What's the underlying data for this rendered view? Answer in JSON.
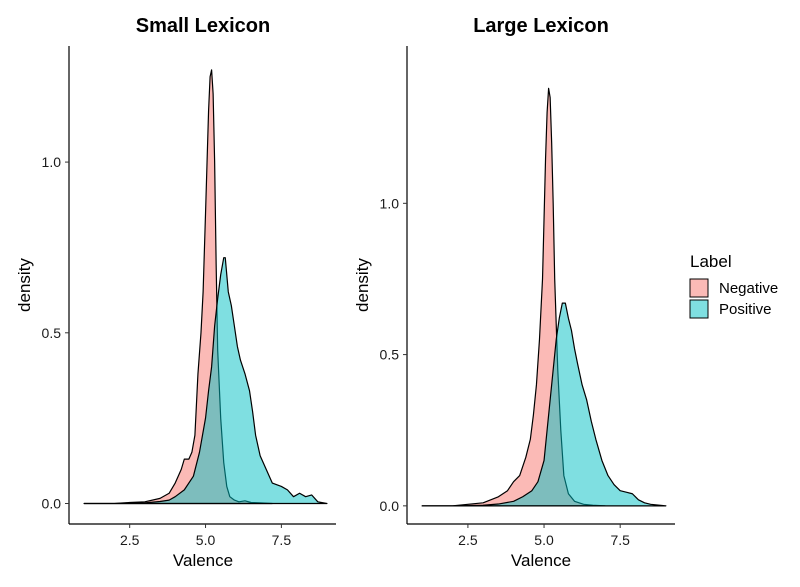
{
  "chart_data": [
    {
      "type": "area",
      "title": "Small Lexicon",
      "xlabel": "Valence",
      "ylabel": "density",
      "xlim": [
        0.5,
        9.3
      ],
      "ylim": [
        -0.06,
        1.34
      ],
      "x_ticks": [
        2.5,
        5.0,
        7.5
      ],
      "x_tick_labels": [
        "2.5",
        "5.0",
        "7.5"
      ],
      "y_ticks": [
        0.0,
        0.5,
        1.0
      ],
      "y_tick_labels": [
        "0.0",
        "0.5",
        "1.0"
      ],
      "series": [
        {
          "name": "Negative",
          "x": [
            1.0,
            2.0,
            2.5,
            3.0,
            3.5,
            3.8,
            4.0,
            4.2,
            4.3,
            4.45,
            4.55,
            4.65,
            4.75,
            4.85,
            4.92,
            5.0,
            5.05,
            5.1,
            5.15,
            5.2,
            5.25,
            5.3,
            5.35,
            5.4,
            5.5,
            5.6,
            5.7,
            5.8,
            5.95,
            6.1,
            6.3,
            6.5,
            6.8,
            7.2
          ],
          "y": [
            0.0,
            0.0,
            0.003,
            0.005,
            0.015,
            0.03,
            0.06,
            0.1,
            0.13,
            0.13,
            0.15,
            0.2,
            0.38,
            0.5,
            0.62,
            0.85,
            1.0,
            1.15,
            1.25,
            1.27,
            1.2,
            1.0,
            0.7,
            0.45,
            0.25,
            0.12,
            0.05,
            0.02,
            0.01,
            0.005,
            0.008,
            0.003,
            0.002,
            0.0
          ]
        },
        {
          "name": "Positive",
          "x": [
            1.0,
            2.0,
            3.0,
            3.5,
            3.8,
            4.0,
            4.3,
            4.6,
            4.8,
            5.0,
            5.1,
            5.2,
            5.3,
            5.4,
            5.5,
            5.6,
            5.65,
            5.75,
            5.85,
            5.95,
            6.05,
            6.15,
            6.3,
            6.45,
            6.55,
            6.65,
            6.8,
            7.0,
            7.2,
            7.5,
            7.7,
            7.9,
            8.1,
            8.3,
            8.5,
            8.7,
            9.0
          ],
          "y": [
            0.0,
            0.0,
            0.002,
            0.006,
            0.01,
            0.02,
            0.04,
            0.08,
            0.15,
            0.25,
            0.33,
            0.4,
            0.52,
            0.6,
            0.67,
            0.72,
            0.72,
            0.62,
            0.58,
            0.52,
            0.46,
            0.42,
            0.38,
            0.33,
            0.27,
            0.2,
            0.14,
            0.1,
            0.06,
            0.05,
            0.04,
            0.02,
            0.03,
            0.02,
            0.025,
            0.005,
            0.0
          ]
        }
      ]
    },
    {
      "type": "area",
      "title": "Large Lexicon",
      "xlabel": "Valence",
      "ylabel": "density",
      "xlim": [
        0.5,
        9.3
      ],
      "ylim": [
        -0.06,
        1.52
      ],
      "x_ticks": [
        2.5,
        5.0,
        7.5
      ],
      "x_tick_labels": [
        "2.5",
        "5.0",
        "7.5"
      ],
      "y_ticks": [
        0.0,
        0.5,
        1.0
      ],
      "y_tick_labels": [
        "0.0",
        "0.5",
        "1.0"
      ],
      "series": [
        {
          "name": "Negative",
          "x": [
            1.0,
            2.0,
            2.5,
            3.0,
            3.5,
            3.8,
            4.0,
            4.2,
            4.4,
            4.55,
            4.65,
            4.75,
            4.85,
            4.95,
            5.0,
            5.05,
            5.1,
            5.15,
            5.2,
            5.25,
            5.3,
            5.35,
            5.45,
            5.55,
            5.65,
            5.8,
            6.0,
            6.3,
            6.6,
            7.0
          ],
          "y": [
            0.0,
            0.0,
            0.005,
            0.01,
            0.03,
            0.05,
            0.08,
            0.1,
            0.16,
            0.22,
            0.3,
            0.4,
            0.55,
            0.75,
            0.95,
            1.15,
            1.3,
            1.38,
            1.35,
            1.2,
            1.0,
            0.75,
            0.45,
            0.25,
            0.1,
            0.04,
            0.015,
            0.005,
            0.002,
            0.0
          ]
        },
        {
          "name": "Positive",
          "x": [
            1.0,
            2.0,
            3.0,
            3.5,
            4.0,
            4.3,
            4.6,
            4.8,
            5.0,
            5.1,
            5.2,
            5.3,
            5.4,
            5.5,
            5.6,
            5.7,
            5.8,
            5.9,
            6.0,
            6.1,
            6.25,
            6.4,
            6.55,
            6.7,
            6.9,
            7.1,
            7.3,
            7.5,
            7.7,
            7.9,
            8.1,
            8.3,
            8.5,
            9.0
          ],
          "y": [
            0.0,
            0.0,
            0.002,
            0.006,
            0.015,
            0.03,
            0.05,
            0.08,
            0.15,
            0.25,
            0.35,
            0.45,
            0.55,
            0.62,
            0.67,
            0.67,
            0.62,
            0.58,
            0.52,
            0.47,
            0.4,
            0.35,
            0.28,
            0.22,
            0.15,
            0.1,
            0.07,
            0.05,
            0.045,
            0.04,
            0.02,
            0.01,
            0.005,
            0.0
          ]
        }
      ]
    }
  ],
  "legend": {
    "title": "Label",
    "entries": [
      {
        "name": "Negative",
        "color": "#F8766D"
      },
      {
        "name": "Positive",
        "color": "#00BFC4"
      }
    ]
  },
  "colors": {
    "negative": "#F8766D",
    "positive": "#00BFC4",
    "outline": "#000000"
  }
}
